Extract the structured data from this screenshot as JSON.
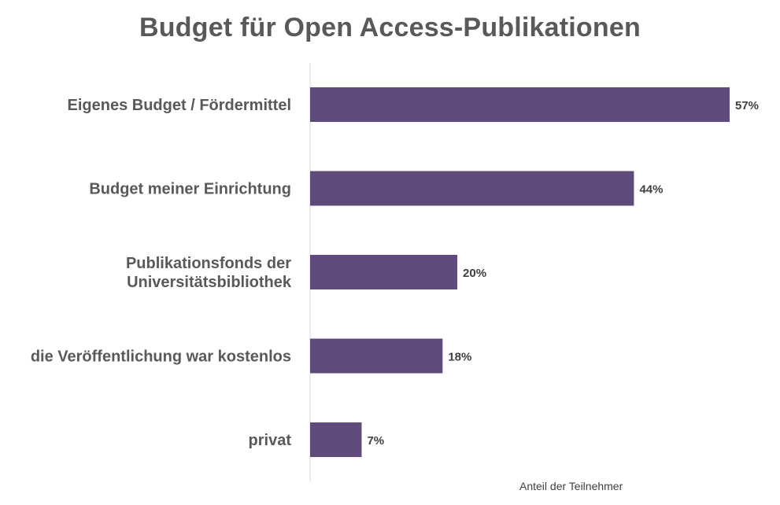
{
  "chart_data": {
    "type": "bar",
    "orientation": "horizontal",
    "title": "Budget für Open Access-Publikationen",
    "xlabel": "Anteil der Teilnehmer",
    "ylabel": "",
    "categories": [
      [
        "Eigenes Budget / Fördermittel"
      ],
      [
        "Budget meiner Einrichtung"
      ],
      [
        "Publikationsfonds der",
        "Universitätsbibliothek"
      ],
      [
        "die Veröffentlichung war kostenlos"
      ],
      [
        "privat"
      ]
    ],
    "values": [
      57,
      44,
      20,
      18,
      7
    ],
    "value_labels": [
      "57%",
      "44%",
      "20%",
      "18%",
      "7%"
    ],
    "xlim": [
      0,
      57
    ],
    "grid": false,
    "legend": "none",
    "bar_color": "#5f4a7b",
    "axis_color": "#d9d9d9"
  }
}
